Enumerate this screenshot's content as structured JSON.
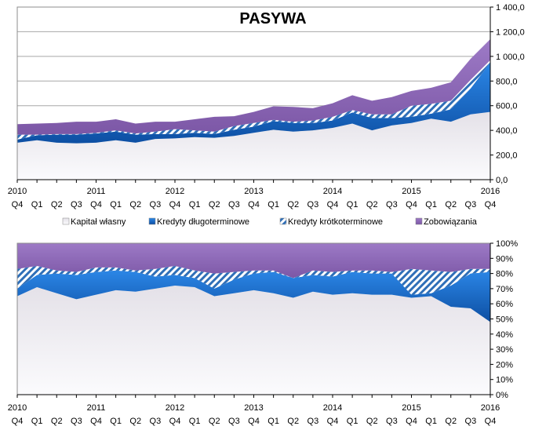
{
  "chart_data": [
    {
      "type": "area",
      "stacked": true,
      "title": "PASYWA",
      "ylim": [
        0,
        1400
      ],
      "y_ticks": [
        "0,0",
        "200,0",
        "400,0",
        "600,0",
        "800,0",
        "1 000,0",
        "1 200,0",
        "1 400,0"
      ],
      "x_year_labels": [
        "2010",
        "2011",
        "2012",
        "2013",
        "2014",
        "2015",
        "2016"
      ],
      "x_quarter_labels": [
        "Q4",
        "Q1",
        "Q2",
        "Q3",
        "Q4",
        "Q1",
        "Q2",
        "Q3",
        "Q4",
        "Q1",
        "Q2",
        "Q3",
        "Q4",
        "Q1",
        "Q2",
        "Q3",
        "Q4",
        "Q1",
        "Q2",
        "Q3",
        "Q4",
        "Q1",
        "Q2",
        "Q3",
        "Q4"
      ],
      "series": [
        {
          "name": "Kapitał własny",
          "values": [
            300,
            320,
            300,
            295,
            300,
            320,
            300,
            330,
            335,
            345,
            340,
            355,
            380,
            405,
            390,
            400,
            420,
            455,
            400,
            440,
            460,
            495,
            470,
            530,
            550
          ]
        },
        {
          "name": "Kredyty długoterminowe",
          "values": [
            25,
            40,
            65,
            70,
            75,
            70,
            65,
            40,
            35,
            35,
            30,
            50,
            50,
            70,
            70,
            60,
            60,
            90,
            100,
            60,
            50,
            40,
            100,
            210,
            400
          ]
        },
        {
          "name": "Kredyty krótkoterminowe",
          "values": [
            40,
            5,
            5,
            5,
            5,
            10,
            10,
            20,
            40,
            20,
            20,
            30,
            30,
            10,
            10,
            20,
            30,
            20,
            30,
            30,
            90,
            80,
            70,
            70,
            20
          ]
        },
        {
          "name": "Zobowiązania",
          "values": [
            85,
            90,
            90,
            100,
            90,
            90,
            80,
            80,
            60,
            90,
            120,
            80,
            90,
            110,
            120,
            100,
            110,
            120,
            110,
            140,
            120,
            130,
            150,
            170,
            170
          ]
        }
      ],
      "colors": [
        "#f1f0f3",
        "#1f6fd1",
        "#3f7fc6",
        "#8b66b3"
      ]
    },
    {
      "type": "area",
      "stacked": true,
      "percent": true,
      "ylim": [
        0,
        100
      ],
      "y_ticks": [
        "0%",
        "10%",
        "20%",
        "30%",
        "40%",
        "50%",
        "60%",
        "70%",
        "80%",
        "90%",
        "100%"
      ],
      "x_year_labels": [
        "2010",
        "2011",
        "2012",
        "2013",
        "2014",
        "2015",
        "2016"
      ],
      "x_quarter_labels": [
        "Q4",
        "Q1",
        "Q2",
        "Q3",
        "Q4",
        "Q1",
        "Q2",
        "Q3",
        "Q4",
        "Q1",
        "Q2",
        "Q3",
        "Q4",
        "Q1",
        "Q2",
        "Q3",
        "Q4",
        "Q1",
        "Q2",
        "Q3",
        "Q4",
        "Q1",
        "Q2",
        "Q3",
        "Q4"
      ],
      "series": [
        {
          "name": "Kapitał własny",
          "values": [
            65,
            71,
            67,
            63,
            66,
            69,
            68,
            70,
            72,
            71,
            65,
            67,
            69,
            67,
            64,
            68,
            66,
            67,
            66,
            66,
            64,
            65,
            58,
            57,
            48
          ]
        },
        {
          "name": "Kredyty długoterminowe",
          "values": [
            5,
            8,
            13,
            16,
            15,
            13,
            13,
            8,
            7,
            6,
            5,
            9,
            11,
            14,
            13,
            11,
            12,
            14,
            14,
            14,
            2,
            2,
            14,
            23,
            33
          ]
        },
        {
          "name": "Kredyty krótkoterminowe",
          "values": [
            13,
            6,
            2,
            2,
            3,
            2,
            1,
            5,
            6,
            5,
            10,
            5,
            2,
            1,
            0,
            3,
            3,
            1,
            2,
            1,
            17,
            15,
            9,
            3,
            2
          ]
        },
        {
          "name": "Zobowiązania",
          "values": [
            17,
            15,
            18,
            19,
            16,
            16,
            18,
            17,
            15,
            18,
            20,
            19,
            18,
            18,
            23,
            18,
            19,
            18,
            18,
            19,
            17,
            18,
            19,
            17,
            17
          ]
        }
      ]
    }
  ],
  "legend": [
    {
      "label": "Kapitał własny",
      "color": "#f1f0f3"
    },
    {
      "label": "Kredyty długoterminowe",
      "color": "#1f6fd1"
    },
    {
      "label": "Kredyty krótkoterminowe",
      "color": "#3f7fc6"
    },
    {
      "label": "Zobowiązania",
      "color": "#8b66b3"
    }
  ]
}
